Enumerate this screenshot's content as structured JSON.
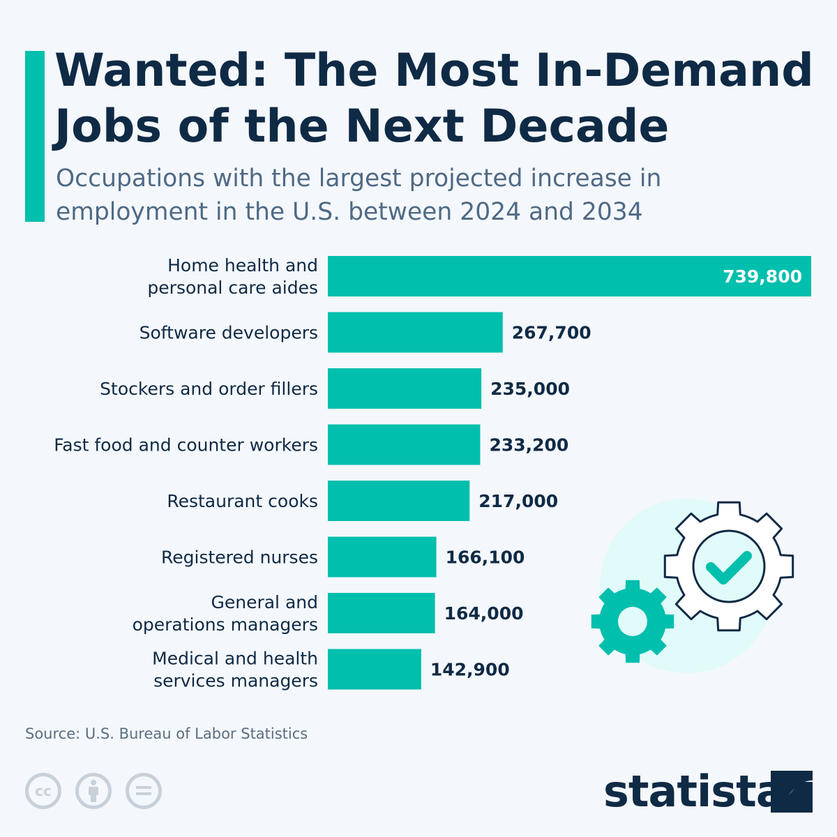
{
  "title": "Wanted: The Most In-Demand Jobs of the Next Decade",
  "subtitle": "Occupations with the largest projected increase in employment in the U.S. between 2024 and 2034",
  "source": "Source: U.S. Bureau of Labor Statistics",
  "brand": "statista",
  "colors": {
    "bar": "#00bfad",
    "text": "#0f2a45",
    "accent": "#00bfad"
  },
  "icons": [
    "gears-checkmark-illustration",
    "cc-icon",
    "by-attribution-icon",
    "no-derivatives-icon",
    "statista-logo-icon"
  ],
  "chart_data": {
    "type": "bar",
    "orientation": "horizontal",
    "categories": [
      [
        "Home health and",
        "personal care aides"
      ],
      [
        "Software developers"
      ],
      [
        "Stockers and order fillers"
      ],
      [
        "Fast food and counter workers"
      ],
      [
        "Restaurant cooks"
      ],
      [
        "Registered nurses"
      ],
      [
        "General and",
        "operations managers"
      ],
      [
        "Medical and health",
        "services managers"
      ]
    ],
    "values": [
      739800,
      267700,
      235000,
      233200,
      217000,
      166100,
      164000,
      142900
    ],
    "value_labels": [
      "739,800",
      "267,700",
      "235,000",
      "233,200",
      "217,000",
      "166,100",
      "164,000",
      "142,900"
    ],
    "xlim": [
      0,
      739800
    ],
    "grid": false,
    "legend": "none"
  }
}
